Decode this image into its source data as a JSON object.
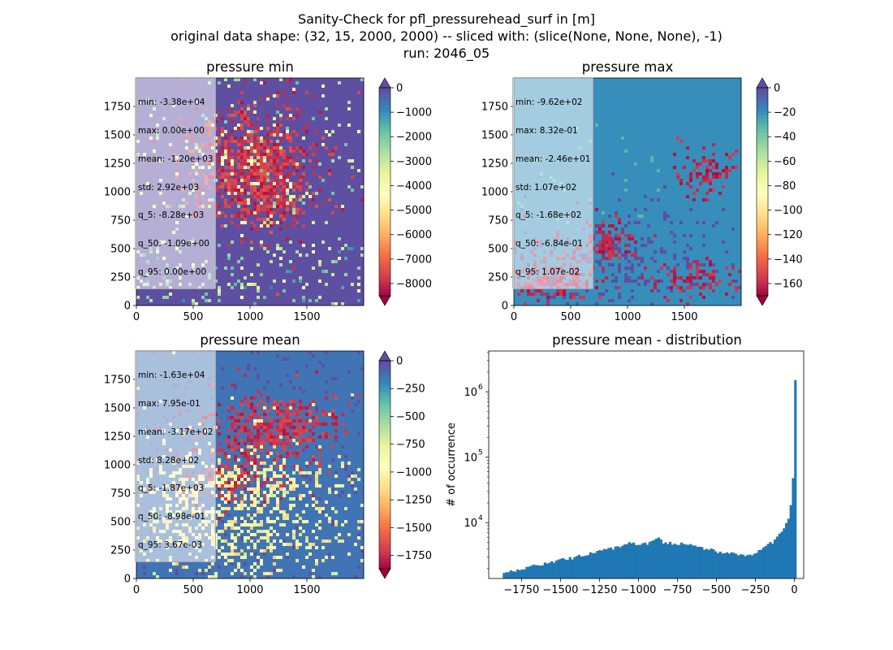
{
  "suptitle": {
    "line1": "Sanity-Check for pfl_pressurehead_surf in [m]",
    "line2": "original data shape: (32, 15, 2000, 2000) -- sliced with: (slice(None, None, None), -1)",
    "line3": "run: 2046_05"
  },
  "colormap": "Spectral",
  "chart_data": [
    {
      "type": "heatmap",
      "title": "pressure min",
      "x_ticks": [
        "0",
        "500",
        "1000",
        "1500"
      ],
      "y_ticks": [
        "0",
        "250",
        "500",
        "750",
        "1000",
        "1250",
        "1500",
        "1750"
      ],
      "xlim": [
        0,
        2000
      ],
      "ylim": [
        0,
        2000
      ],
      "colorbar": {
        "vmin": -8500,
        "vmax": 0,
        "extend": "both",
        "ticks": [
          "0",
          "−1000",
          "−2000",
          "−3000",
          "−4000",
          "−5000",
          "−6000",
          "−7000",
          "−8000"
        ],
        "tick_values": [
          0,
          -1000,
          -2000,
          -3000,
          -4000,
          -5000,
          -6000,
          -7000,
          -8000
        ]
      },
      "stats": [
        "min: -3.38e+04",
        "max: 0.00e+00",
        "mean: -1.20e+03",
        "std: 2.92e+03",
        "q_5: -8.28e+03",
        "q_50: -1.09e+00",
        "q_95: 0.00e+00"
      ]
    },
    {
      "type": "heatmap",
      "title": "pressure max",
      "x_ticks": [
        "0",
        "500",
        "1000",
        "1500"
      ],
      "y_ticks": [
        "0",
        "250",
        "500",
        "750",
        "1000",
        "1250",
        "1500",
        "1750"
      ],
      "xlim": [
        0,
        2000
      ],
      "ylim": [
        0,
        2000
      ],
      "colorbar": {
        "vmin": -170,
        "vmax": 0,
        "extend": "both",
        "ticks": [
          "0",
          "−20",
          "−40",
          "−60",
          "−80",
          "−100",
          "−120",
          "−140",
          "−160"
        ],
        "tick_values": [
          0,
          -20,
          -40,
          -60,
          -80,
          -100,
          -120,
          -140,
          -160
        ]
      },
      "stats": [
        "min: -9.62e+02",
        "max: 8.32e-01",
        "mean: -2.46e+01",
        "std: 1.07e+02",
        "q_5: -1.68e+02",
        "q_50: -6.84e-01",
        "q_95: 1.07e-02"
      ]
    },
    {
      "type": "heatmap",
      "title": "pressure mean",
      "x_ticks": [
        "0",
        "500",
        "1000",
        "1500"
      ],
      "y_ticks": [
        "0",
        "250",
        "500",
        "750",
        "1000",
        "1250",
        "1500",
        "1750"
      ],
      "xlim": [
        0,
        2000
      ],
      "ylim": [
        0,
        2000
      ],
      "colorbar": {
        "vmin": -1870,
        "vmax": 0,
        "extend": "both",
        "ticks": [
          "0",
          "−250",
          "−500",
          "−750",
          "−1000",
          "−1250",
          "−1500",
          "−1750"
        ],
        "tick_values": [
          0,
          -250,
          -500,
          -750,
          -1000,
          -1250,
          -1500,
          -1750
        ]
      },
      "stats": [
        "min: -1.63e+04",
        "max: 7.95e-01",
        "mean: -3.17e+02",
        "std: 8.28e+02",
        "q_5: -1.87e+03",
        "q_50: -8.98e-01",
        "q_95: 3.67e-03"
      ]
    },
    {
      "type": "bar",
      "title": "pressure mean - distribution",
      "ylabel": "# of occurrence",
      "xlim": [
        -1960,
        60
      ],
      "y_log": true,
      "ylim": [
        1400,
        4200000
      ],
      "x_ticks": [
        "−1750",
        "−1500",
        "−1250",
        "−1000",
        "−750",
        "−500",
        "−250",
        "0"
      ],
      "x_tick_values": [
        -1750,
        -1500,
        -1250,
        -1000,
        -750,
        -500,
        -250,
        0
      ],
      "y_ticks": [
        "10",
        "10",
        "10"
      ],
      "y_tick_exponents": [
        "4",
        "5",
        "6"
      ],
      "y_tick_values": [
        10000,
        100000,
        1000000
      ],
      "bin_width": 14.6,
      "bins": [
        [
          -1870,
          1700
        ],
        [
          -1750,
          2000
        ],
        [
          -1625,
          2300
        ],
        [
          -1500,
          2700
        ],
        [
          -1375,
          3100
        ],
        [
          -1250,
          3700
        ],
        [
          -1125,
          4300
        ],
        [
          -1070,
          5000
        ],
        [
          -1000,
          4600
        ],
        [
          -900,
          5200
        ],
        [
          -875,
          6000
        ],
        [
          -850,
          5000
        ],
        [
          -750,
          4800
        ],
        [
          -625,
          4300
        ],
        [
          -500,
          3600
        ],
        [
          -375,
          3250
        ],
        [
          -300,
          3150
        ],
        [
          -250,
          3600
        ],
        [
          -200,
          4200
        ],
        [
          -150,
          5000
        ],
        [
          -100,
          6500
        ],
        [
          -75,
          8000
        ],
        [
          -50,
          11000
        ],
        [
          -35,
          15000
        ],
        [
          -25,
          23000
        ],
        [
          -15,
          50000
        ],
        [
          -8,
          55000
        ],
        [
          0,
          2700000
        ]
      ],
      "color": "#1f77b4"
    }
  ]
}
